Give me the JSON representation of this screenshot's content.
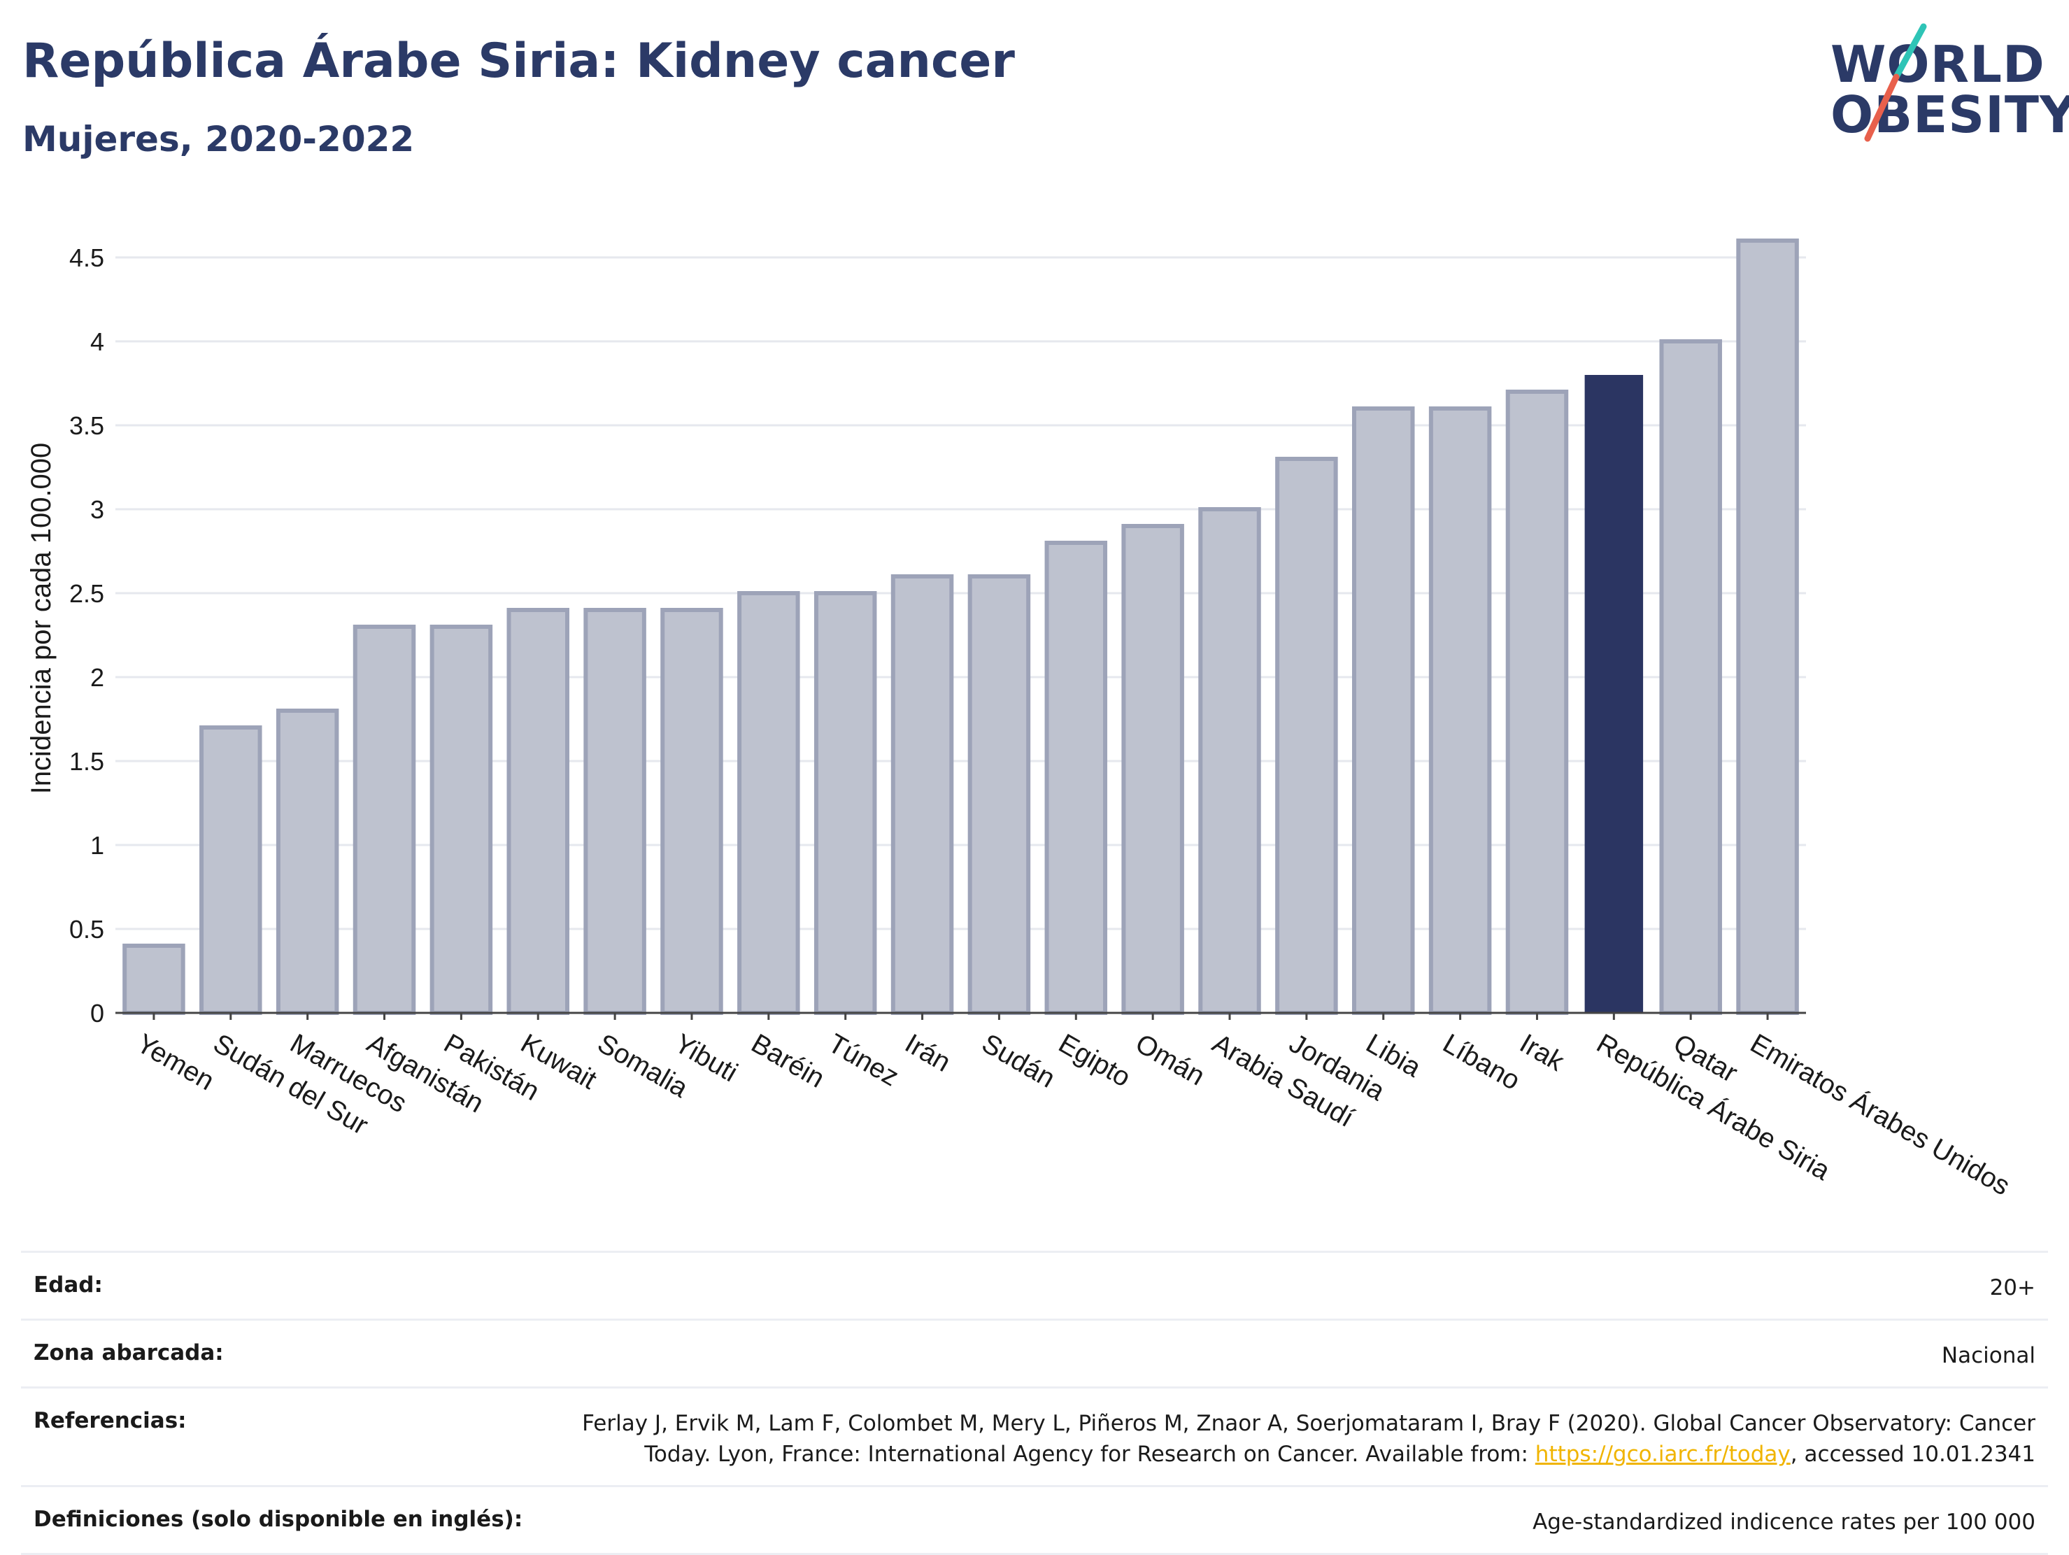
{
  "header": {
    "title": "República Árabe Siria: Kidney cancer",
    "subtitle": "Mujeres, 2020-2022"
  },
  "logo": {
    "line1": "WORLD",
    "line2": "OBESITY",
    "slash_colors": [
      "#2ec4b6",
      "#e8604c"
    ]
  },
  "colors": {
    "bar_default": "#bec2cf",
    "bar_border": "#9da3b8",
    "bar_highlight": "#2b3562",
    "title": "#2b3a67"
  },
  "chart_data": {
    "type": "bar",
    "ylabel": "Incidencia por cada 100.000",
    "xlabel": "",
    "ylim": [
      0,
      4.7
    ],
    "yticks": [
      0,
      0.5,
      1,
      1.5,
      2,
      2.5,
      3,
      3.5,
      4,
      4.5
    ],
    "ytick_labels": [
      "0",
      "0.5",
      "1",
      "1.5",
      "2",
      "2.5",
      "3",
      "3.5",
      "4",
      "4.5"
    ],
    "grid": true,
    "highlight": "República Árabe Siria",
    "categories": [
      "Yemen",
      "Sudán del Sur",
      "Marruecos",
      "Afganistán",
      "Pakistán",
      "Kuwait",
      "Somalia",
      "Yibuti",
      "Baréin",
      "Túnez",
      "Irán",
      "Sudán",
      "Egipto",
      "Omán",
      "Arabia Saudí",
      "Jordania",
      "Libia",
      "Líbano",
      "Irak",
      "República Árabe Siria",
      "Qatar",
      "Emiratos Árabes Unidos"
    ],
    "values": [
      0.4,
      1.7,
      1.8,
      2.3,
      2.3,
      2.4,
      2.4,
      2.4,
      2.5,
      2.5,
      2.6,
      2.6,
      2.8,
      2.9,
      3.0,
      3.3,
      3.6,
      3.6,
      3.7,
      3.8,
      4.0,
      4.6
    ]
  },
  "info": {
    "rows": [
      {
        "label": "Edad:",
        "value": "20+"
      },
      {
        "label": "Zona abarcada:",
        "value": "Nacional"
      },
      {
        "label": "Referencias:",
        "value": "Ferlay J, Ervik M, Lam F, Colombet M, Mery L, Piñeros M, Znaor A, Soerjomataram I, Bray F (2020). Global Cancer Observatory: Cancer Today. Lyon, France: International Agency for Research on Cancer. Available from: ",
        "link": "https://gco.iarc.fr/today",
        "value_after": ", accessed 10.01.2341"
      },
      {
        "label": "Definiciones (solo disponible en inglés):",
        "value": "Age-standardized indicence rates per 100 000"
      }
    ]
  }
}
